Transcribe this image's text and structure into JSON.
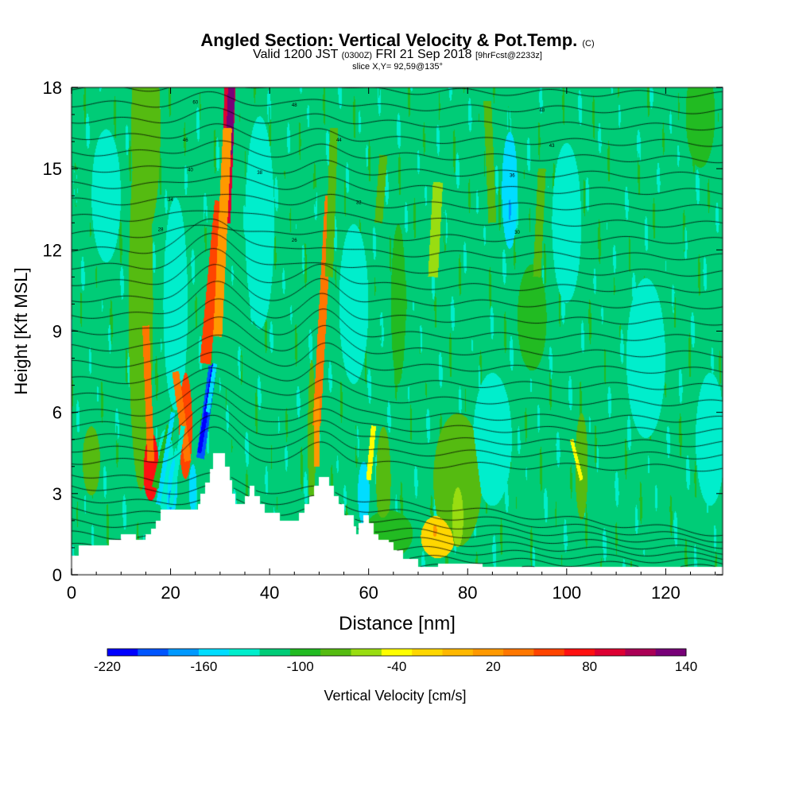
{
  "title": {
    "main": "Angled Section: Vertical Velocity & Pot.Temp.",
    "unit": "(C)",
    "valid": "Valid 1200 JST",
    "valid_utc": "(0300Z)",
    "date": "FRI 21 Sep 2018",
    "forecast": "[9hrFcst@2233z]",
    "slice": "slice X,Y= 92,59@135°"
  },
  "chart_data": {
    "type": "heatmap",
    "xlabel": "Distance [nm]",
    "ylabel": "Height [Kft MSL]",
    "xlim": [
      0,
      131.5
    ],
    "ylim": [
      0,
      18
    ],
    "x_ticks": [
      "0",
      "20",
      "40",
      "60",
      "80",
      "100",
      "120"
    ],
    "y_ticks": [
      "0",
      "3",
      "6",
      "9",
      "12",
      "15",
      "18"
    ],
    "colorbar": {
      "label": "Vertical Velocity [cm/s]",
      "min": -220,
      "max": 140,
      "step": 20,
      "tick_labels": [
        "-220",
        "-160",
        "-100",
        "-40",
        "20",
        "80",
        "140"
      ],
      "colors": [
        "#0000ff",
        "#0055ff",
        "#0099ff",
        "#00ddff",
        "#00eecc",
        "#00cc77",
        "#22bb22",
        "#55bb11",
        "#99dd11",
        "#ffff00",
        "#ffd700",
        "#ffb800",
        "#ff9900",
        "#ff7700",
        "#ff4400",
        "#ff1111",
        "#dd0033",
        "#aa0055",
        "#770077"
      ]
    },
    "background_level": 5,
    "terrain_kft": [
      [
        0,
        0.7
      ],
      [
        1.5,
        1.1
      ],
      [
        6,
        1.1
      ],
      [
        7.5,
        1.3
      ],
      [
        10,
        1.5
      ],
      [
        12,
        1.5
      ],
      [
        13,
        1.3
      ],
      [
        15,
        1.5
      ],
      [
        16,
        1.7
      ],
      [
        17,
        2.0
      ],
      [
        18,
        2.4
      ],
      [
        21,
        2.4
      ],
      [
        23,
        2.4
      ],
      [
        25,
        2.4
      ],
      [
        25.5,
        2.6
      ],
      [
        26,
        3.0
      ],
      [
        27,
        3.4
      ],
      [
        28,
        3.9
      ],
      [
        28.5,
        4.5
      ],
      [
        30.5,
        4.5
      ],
      [
        31,
        4.0
      ],
      [
        32,
        3.5
      ],
      [
        32.5,
        3.0
      ],
      [
        33,
        2.6
      ],
      [
        34,
        2.6
      ],
      [
        35,
        2.9
      ],
      [
        36,
        3.3
      ],
      [
        37,
        2.9
      ],
      [
        38,
        2.6
      ],
      [
        39,
        2.3
      ],
      [
        41,
        2.3
      ],
      [
        42,
        2.0
      ],
      [
        45,
        2.0
      ],
      [
        46,
        2.3
      ],
      [
        47,
        2.6
      ],
      [
        48,
        2.9
      ],
      [
        49,
        3.3
      ],
      [
        50,
        3.6
      ],
      [
        51,
        3.6
      ],
      [
        52,
        3.3
      ],
      [
        53,
        2.9
      ],
      [
        54,
        2.6
      ],
      [
        55,
        2.2
      ],
      [
        57,
        1.8
      ],
      [
        57.5,
        1.5
      ],
      [
        58,
        1.9
      ],
      [
        59,
        2.2
      ],
      [
        60,
        1.9
      ],
      [
        61,
        1.5
      ],
      [
        62,
        1.3
      ],
      [
        64,
        1.2
      ],
      [
        65,
        0.9
      ],
      [
        67,
        0.6
      ],
      [
        70,
        0.3
      ],
      [
        74,
        0.4
      ],
      [
        76,
        0.4
      ],
      [
        83,
        0.3
      ],
      [
        131.5,
        0.3
      ]
    ],
    "cells": [
      {
        "x": 16,
        "y": 4.0,
        "sx": 1.6,
        "sy": 1.3,
        "level": 15
      },
      {
        "x": 16,
        "y": 4.0,
        "sx": 0.8,
        "sy": 0.7,
        "level": 16
      },
      {
        "x": 14,
        "y": 10.0,
        "sx": 2.5,
        "sy": 7,
        "level": 7
      },
      {
        "x": 23,
        "y": 5.5,
        "sx": 1.4,
        "sy": 2.0,
        "level": 14
      },
      {
        "x": 23,
        "y": 5.0,
        "sx": 0.6,
        "sy": 1.2,
        "level": 16
      },
      {
        "x": 4,
        "y": 4.2,
        "sx": 1.8,
        "sy": 1.3,
        "level": 7
      },
      {
        "x": 15,
        "y": 16.5,
        "sx": 3,
        "sy": 4,
        "level": 7
      },
      {
        "x": 48.5,
        "y": 5.0,
        "sx": 0.8,
        "sy": 3,
        "level": 7
      },
      {
        "x": 63,
        "y": 3.5,
        "sx": 1.5,
        "sy": 2,
        "level": 7
      },
      {
        "x": 64,
        "y": 1.5,
        "sx": 5,
        "sy": 0.9,
        "level": 6
      },
      {
        "x": 78,
        "y": 3.5,
        "sx": 5,
        "sy": 2.5,
        "level": 7
      },
      {
        "x": 78,
        "y": 3.0,
        "sx": 2.8,
        "sy": 2.0,
        "level": 8
      },
      {
        "x": 74,
        "y": 1.4,
        "sx": 3.5,
        "sy": 0.8,
        "level": 10
      },
      {
        "x": 73.5,
        "y": 1.5,
        "sx": 1.5,
        "sy": 0.6,
        "level": 12
      },
      {
        "x": 66,
        "y": 10,
        "sx": 1.5,
        "sy": 3,
        "level": 6
      },
      {
        "x": 103,
        "y": 4.0,
        "sx": 1.3,
        "sy": 2,
        "level": 7
      },
      {
        "x": 127,
        "y": 17,
        "sx": 3,
        "sy": 2,
        "level": 6
      },
      {
        "x": 93,
        "y": 9.5,
        "sx": 3,
        "sy": 2,
        "level": 6
      },
      {
        "x": 21,
        "y": 10,
        "sx": 2.5,
        "sy": 4,
        "level": 4
      },
      {
        "x": 38,
        "y": 13,
        "sx": 3,
        "sy": 4,
        "level": 4
      },
      {
        "x": 57,
        "y": 10,
        "sx": 3,
        "sy": 3,
        "level": 4
      },
      {
        "x": 85,
        "y": 5,
        "sx": 4,
        "sy": 2.5,
        "level": 4
      },
      {
        "x": 116,
        "y": 8,
        "sx": 4,
        "sy": 3,
        "level": 4
      },
      {
        "x": 100,
        "y": 13,
        "sx": 3,
        "sy": 3,
        "level": 4
      },
      {
        "x": 129,
        "y": 5,
        "sx": 3,
        "sy": 2.5,
        "level": 4
      },
      {
        "x": 7,
        "y": 14,
        "sx": 3,
        "sy": 2.5,
        "level": 4
      },
      {
        "x": 88.5,
        "y": 14.2,
        "sx": 1.6,
        "sy": 2.2,
        "level": 3
      },
      {
        "x": 88.5,
        "y": 13.7,
        "sx": 0.8,
        "sy": 1.2,
        "level": 2
      },
      {
        "x": 59,
        "y": 3.0,
        "sx": 1.2,
        "sy": 1.2,
        "level": 3
      },
      {
        "x": 19,
        "y": 3.8,
        "sx": 1.8,
        "sy": 1.6,
        "level": 4
      },
      {
        "x": 20,
        "y": 3.3,
        "sx": 1.4,
        "sy": 1.2,
        "level": 3
      },
      {
        "x": 20,
        "y": 3.0,
        "sx": 0.9,
        "sy": 0.8,
        "level": 2
      },
      {
        "x": 24.5,
        "y": 3.2,
        "sx": 0.8,
        "sy": 0.9,
        "level": 3
      }
    ],
    "streaks": [
      {
        "x0": 15,
        "y0": 9.2,
        "x1": 16,
        "y1": 4.2,
        "w": 0.7,
        "level": 13
      },
      {
        "x0": 21,
        "y0": 7.5,
        "x1": 23.5,
        "y1": 4.2,
        "w": 0.7,
        "level": 13
      },
      {
        "x0": 27,
        "y0": 7.8,
        "x1": 30,
        "y1": 13.8,
        "w": 1.1,
        "level": 14
      },
      {
        "x0": 31,
        "y0": 13.0,
        "x1": 32,
        "y1": 18.0,
        "w": 1.1,
        "level": 16
      },
      {
        "x0": 31.8,
        "y0": 15.5,
        "x1": 32.3,
        "y1": 18.0,
        "w": 0.7,
        "level": 18
      },
      {
        "x0": 29.5,
        "y0": 8.8,
        "x1": 31.5,
        "y1": 16.5,
        "w": 0.9,
        "level": 12
      },
      {
        "x0": 49.5,
        "y0": 5.5,
        "x1": 52,
        "y1": 14,
        "w": 0.8,
        "level": 13
      },
      {
        "x0": 49.5,
        "y0": 4.0,
        "x1": 49.5,
        "y1": 6.5,
        "w": 0.6,
        "level": 12
      },
      {
        "x0": 52,
        "y0": 11,
        "x1": 53,
        "y1": 16.5,
        "w": 0.8,
        "level": 7
      },
      {
        "x0": 62,
        "y0": 13,
        "x1": 63,
        "y1": 15.5,
        "w": 0.8,
        "level": 7
      },
      {
        "x0": 73,
        "y0": 11,
        "x1": 74,
        "y1": 14.5,
        "w": 1.0,
        "level": 8
      },
      {
        "x0": 85,
        "y0": 13,
        "x1": 84,
        "y1": 17.5,
        "w": 0.8,
        "level": 7
      },
      {
        "x0": 94,
        "y0": 11,
        "x1": 95,
        "y1": 15,
        "w": 0.8,
        "level": 7
      },
      {
        "x0": 17,
        "y0": 3.2,
        "x1": 20,
        "y1": 5.5,
        "w": 0.8,
        "level": 6
      },
      {
        "x0": 17.5,
        "y0": 2.6,
        "x1": 20.5,
        "y1": 6.0,
        "w": 0.45,
        "level": 3
      },
      {
        "x0": 20,
        "y0": 2.5,
        "x1": 22.5,
        "y1": 5.5,
        "w": 0.45,
        "level": 4
      },
      {
        "x0": 26,
        "y0": 4.3,
        "x1": 28.5,
        "y1": 7.7,
        "w": 0.8,
        "level": 1
      },
      {
        "x0": 25.8,
        "y0": 4.5,
        "x1": 28.8,
        "y1": 7.8,
        "w": 0.4,
        "level": 0
      },
      {
        "x0": 27.5,
        "y0": 6.0,
        "x1": 29,
        "y1": 7.8,
        "w": 0.4,
        "level": 3
      },
      {
        "x0": 101,
        "y0": 5.0,
        "x1": 103,
        "y1": 3.5,
        "w": 0.35,
        "level": 9
      },
      {
        "x0": 60,
        "y0": 3.5,
        "x1": 61,
        "y1": 5.5,
        "w": 0.5,
        "level": 9
      }
    ],
    "contour_labels": [
      "60",
      "48",
      "48",
      "46",
      "44",
      "43",
      "40",
      "38",
      "36",
      "34",
      "32",
      "30",
      "28",
      "26"
    ]
  }
}
